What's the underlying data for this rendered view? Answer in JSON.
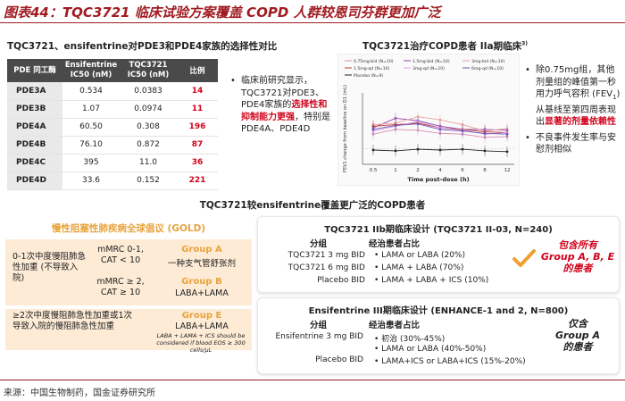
{
  "title": "图表44：TQC3721 临床试验方案覆盖 COPD 人群较恩司芬群更加广泛",
  "selectivity": {
    "title": "TQC3721、ensifentrine对PDE3和PDE4家族的选择性对比",
    "headers": [
      "PDE\n同工酶",
      "Ensifentrine\nIC50 (nM)",
      "TQC3721\nIC50 (nM)",
      "比例"
    ],
    "rows": [
      {
        "pde": "PDE3A",
        "ens": "0.534",
        "tqc": "0.0383",
        "ratio": "14"
      },
      {
        "pde": "PDE3B",
        "ens": "1.07",
        "tqc": "0.0974",
        "ratio": "11"
      },
      {
        "pde": "PDE4A",
        "ens": "60.50",
        "tqc": "0.308",
        "ratio": "196"
      },
      {
        "pde": "PDE4B",
        "ens": "76.10",
        "tqc": "0.872",
        "ratio": "87"
      },
      {
        "pde": "PDE4C",
        "ens": "395",
        "tqc": "11.0",
        "ratio": "36"
      },
      {
        "pde": "PDE4D",
        "ens": "33.6",
        "tqc": "0.152",
        "ratio": "221"
      }
    ],
    "bullet_a": "临床前研究显示，TQC3721对PDE3、PDE4家族的",
    "bullet_b": "选择性和抑制能力更强",
    "bullet_c": "，特别是PDE4A、PDE4D"
  },
  "chart": {
    "title": "TQC3721治疗COPD患者 IIa期临床",
    "footnote": "3)",
    "ylabel": "FEV1 change from baseline on D1 (mL)",
    "xlabel": "Time post-dose (h)"
  },
  "chart_data": {
    "type": "line",
    "x": [
      0.5,
      1,
      2,
      4,
      6,
      8,
      12
    ],
    "xticks": [
      "0.5",
      "1",
      "2",
      "4",
      "6",
      "8",
      "12"
    ],
    "ylim": [
      -100,
      350
    ],
    "series": [
      {
        "name": "0.75mg-bid (N=10)",
        "color": "#d88bb4",
        "values": [
          90,
          120,
          115,
          95,
          90,
          70,
          75
        ]
      },
      {
        "name": "1.5mg-bid (N=10)",
        "color": "#8e44ad",
        "values": [
          130,
          190,
          175,
          140,
          120,
          120,
          115
        ]
      },
      {
        "name": "3mg-bid (N=10)",
        "color": "#e8a0a0",
        "values": [
          150,
          160,
          200,
          180,
          150,
          110,
          125
        ]
      },
      {
        "name": "1.5mg-qd (N=10)",
        "color": "#c0392b",
        "values": [
          140,
          150,
          160,
          130,
          120,
          105,
          100
        ]
      },
      {
        "name": "3mg-qd (N=10)",
        "color": "#d6a0e0",
        "values": [
          110,
          140,
          170,
          130,
          115,
          90,
          100
        ]
      },
      {
        "name": "6mg-qd (N=10)",
        "color": "#6c4fb5",
        "values": [
          120,
          145,
          155,
          120,
          110,
          95,
          90
        ]
      },
      {
        "name": "Placebo (N=9)",
        "color": "#222222",
        "values": [
          -10,
          -15,
          -5,
          -10,
          -5,
          -15,
          -20
        ]
      }
    ]
  },
  "chart_bullets": {
    "b1_a": "除0.75mg组，其他剂量组的峰值第一秒用力呼气容积 (FEV",
    "b1_sub": "1",
    "b1_b": ") 从基线至第四周表现出",
    "b1_red": "显著的剂量依赖性",
    "b2": "不良事件发生率与安慰剂相似"
  },
  "mid_title": "TQC3721较ensifentrine覆盖更广泛的COPD患者",
  "gold": {
    "title": "慢性阻塞性肺疾病全球倡议 (GOLD)",
    "row1_left": "0-1次中度慢阻肺急性加重 (不导致入院)",
    "row1_a_mid": "mMRC 0-1,\nCAT < 10",
    "row1_a_group": "Group A",
    "row1_a_sub": "一种支气管舒张剂",
    "row1_b_mid": "mMRC ≥ 2,\nCAT ≥ 10",
    "row1_b_group": "Group B",
    "row1_b_sub": "LABA+LAMA",
    "row2_left": "≥2次中度慢阻肺急性加重或1次导致入院的慢阻肺急性加重",
    "row2_group": "Group E",
    "row2_sub": "LABA+LAMA",
    "row2_note": "LABA + LAMA + ICS  should be considered if blood EOS ≥ 300 cells/μL"
  },
  "trial1": {
    "title": "TQC3721 IIb期临床设计 (TQC3721 II-03, N=240)",
    "col1": "分组",
    "col2": "经治患者占比",
    "rows": [
      {
        "g": "TQC3721 3 mg BID",
        "p": "LAMA or LABA (20%)"
      },
      {
        "g": "TQC3721 6 mg BID",
        "p": "LAMA + LABA (70%)"
      },
      {
        "g": "Placebo BID",
        "p": "LAMA + LABA + ICS (10%)"
      }
    ],
    "callout": "包含所有\nGroup A, B, E\n的患者"
  },
  "trial2": {
    "title": "Ensifentrine III期临床设计 (ENHANCE-1 and 2, N=800)",
    "col1": "分组",
    "col2": "经治患者占比",
    "rows": [
      {
        "g": "Ensifentrine 3 mg BID",
        "p": "初治 (30%-45%)"
      },
      {
        "g": "",
        "p": "LAMA or LABA (40%-50%)"
      },
      {
        "g": "Placebo BID",
        "p": "LAMA+ICS or LABA+ICS (15%-20%)"
      }
    ],
    "callout": "仅含\nGroup A\n的患者"
  },
  "source": "来源：中国生物制药，国金证券研究所"
}
